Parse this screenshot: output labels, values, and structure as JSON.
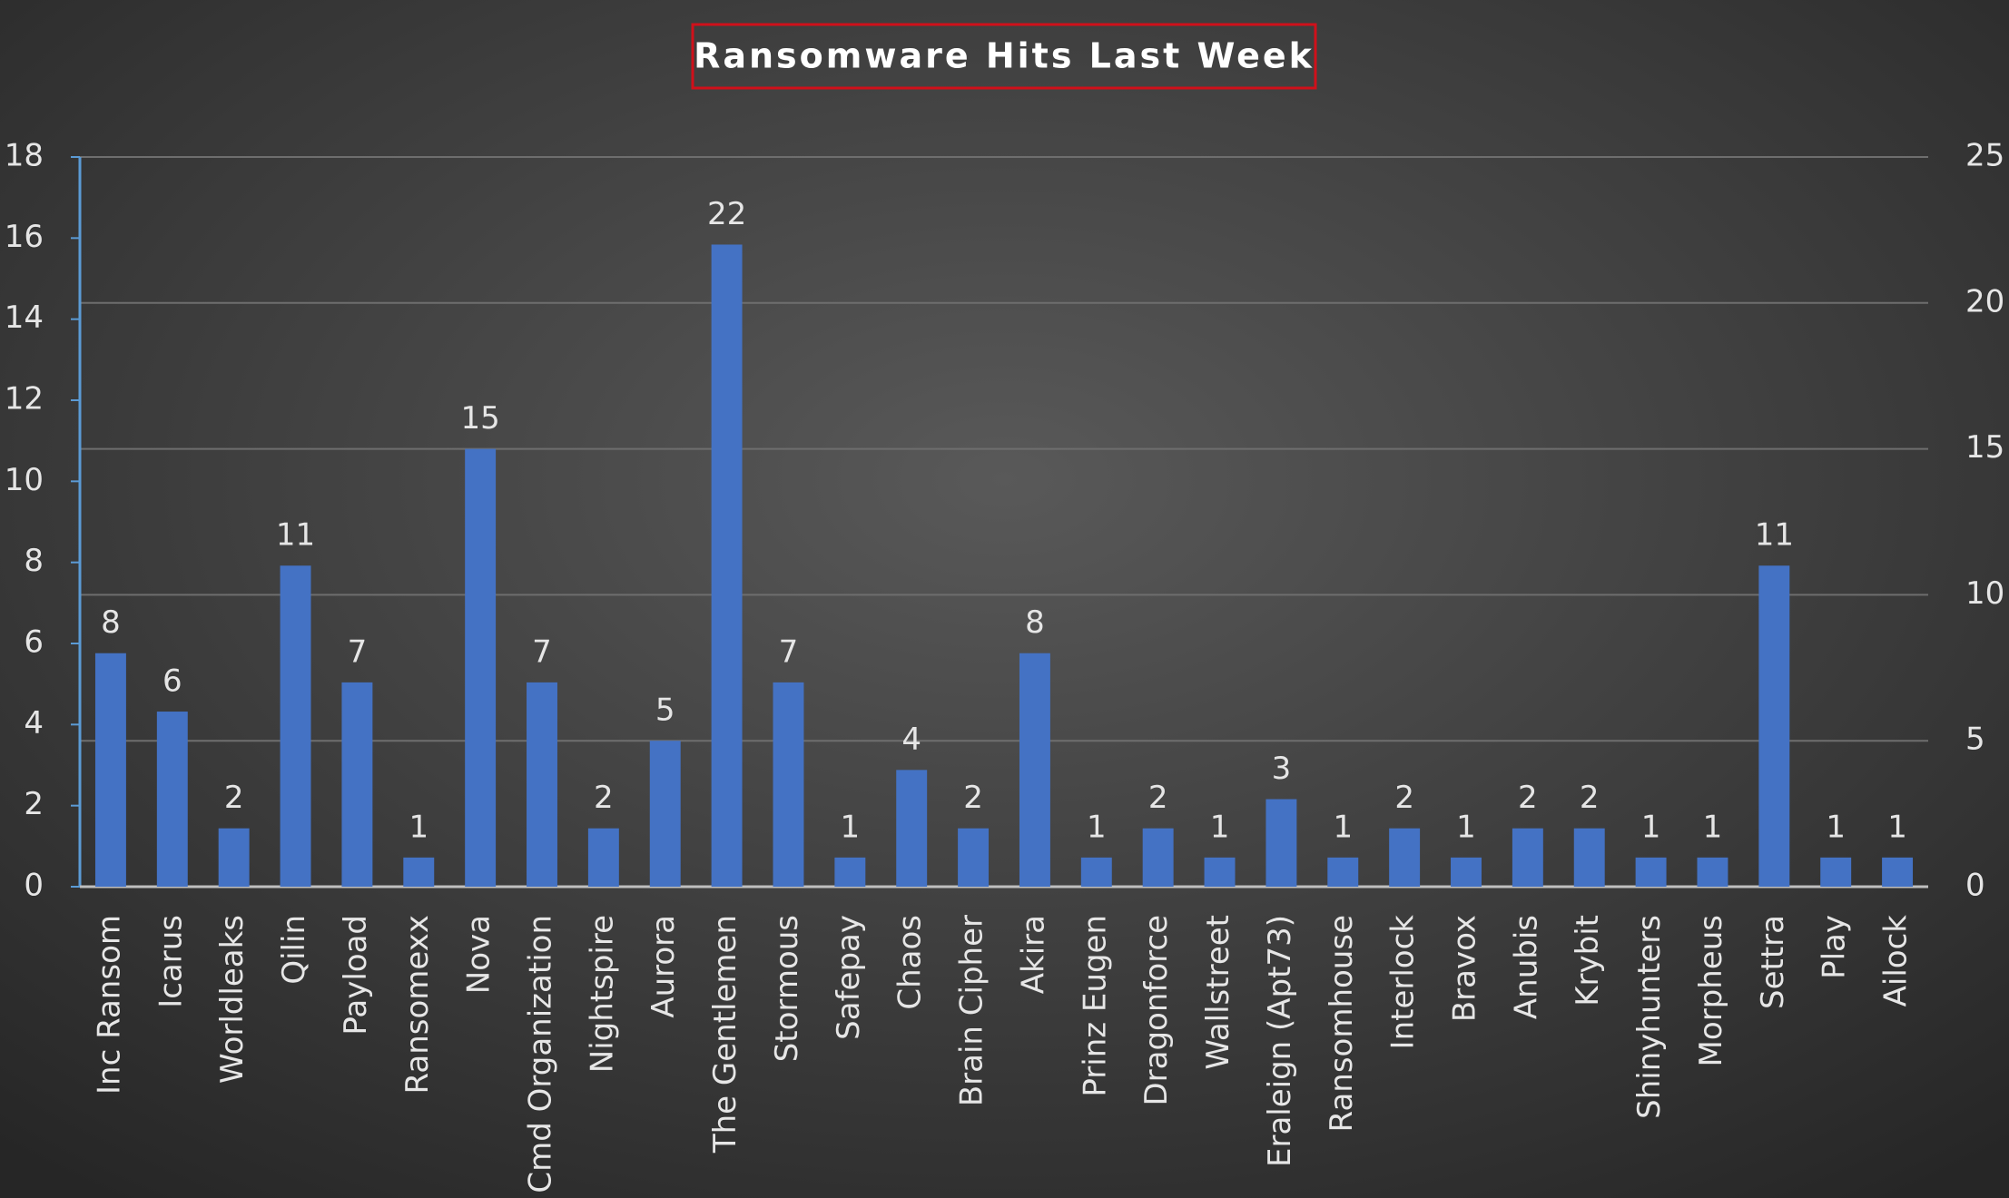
{
  "chart_data": {
    "type": "bar",
    "title": "Ransomware Hits Last Week",
    "categories": [
      "Inc Ransom",
      "Icarus",
      "Worldleaks",
      "Qilin",
      "Payload",
      "Ransomexx",
      "Nova",
      "Cmd Organization",
      "Nightspire",
      "Aurora",
      "The Gentlemen",
      "Stormous",
      "Safepay",
      "Chaos",
      "Brain Cipher",
      "Akira",
      "Prinz Eugen",
      "Dragonforce",
      "Wallstreet",
      "Eraleign (Apt73)",
      "Ransomhouse",
      "Interlock",
      "Bravox",
      "Anubis",
      "Krybit",
      "Shinyhunters",
      "Morpheus",
      "Settra",
      "Play",
      "Ailock"
    ],
    "series": [
      {
        "color": "#4472c4",
        "axis": "y2",
        "values": [
          8,
          6,
          2,
          11,
          7,
          1,
          15,
          7,
          2,
          5,
          22,
          7,
          1,
          4,
          2,
          8,
          1,
          2,
          1,
          3,
          1,
          2,
          1,
          2,
          2,
          1,
          1,
          11,
          1,
          1
        ]
      }
    ],
    "ylim": [
      0,
      18
    ],
    "yticks": [
      0,
      2,
      4,
      6,
      8,
      10,
      12,
      14,
      16,
      18
    ],
    "y2lim": [
      0,
      25
    ],
    "y2ticks": [
      0,
      5,
      10,
      15,
      20,
      25
    ],
    "grid": true,
    "data_labels": true
  }
}
